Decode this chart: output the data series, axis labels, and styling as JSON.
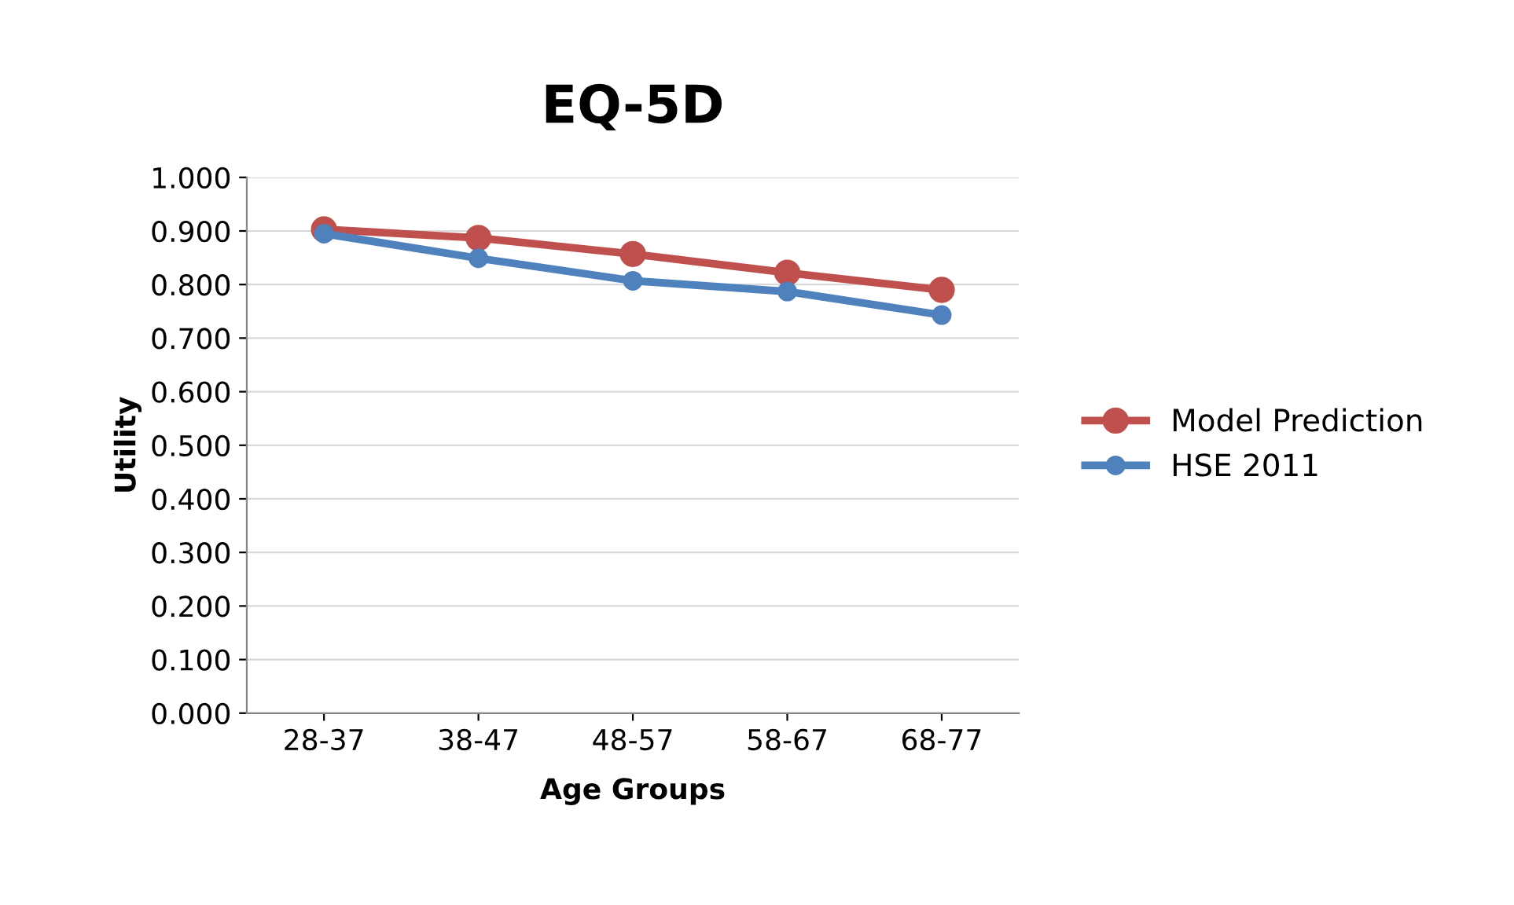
{
  "chart_data": {
    "type": "line",
    "title": "EQ-5D",
    "xlabel": "Age Groups",
    "ylabel": "Utility",
    "categories": [
      "28-37",
      "38-47",
      "48-57",
      "58-67",
      "68-77"
    ],
    "series": [
      {
        "name": "Model Prediction",
        "color": "#c0504d",
        "values": [
          0.903,
          0.887,
          0.857,
          0.822,
          0.79
        ]
      },
      {
        "name": "HSE 2011",
        "color": "#4f81bd",
        "values": [
          0.895,
          0.849,
          0.807,
          0.787,
          0.743
        ]
      }
    ],
    "ylim": [
      0,
      1
    ],
    "yticks": [
      {
        "value": 0,
        "label": "0.000"
      },
      {
        "value": 0.1,
        "label": "0.100"
      },
      {
        "value": 0.2,
        "label": "0.200"
      },
      {
        "value": 0.3,
        "label": "0.300"
      },
      {
        "value": 0.4,
        "label": "0.400"
      },
      {
        "value": 0.5,
        "label": "0.500"
      },
      {
        "value": 0.6,
        "label": "0.600"
      },
      {
        "value": 0.7,
        "label": "0.700"
      },
      {
        "value": 0.8,
        "label": "0.800"
      },
      {
        "value": 0.9,
        "label": "0.900"
      },
      {
        "value": 1,
        "label": "1.000"
      }
    ],
    "grid": "y",
    "legend": "right",
    "marker": "circle",
    "line_style": "solid"
  }
}
